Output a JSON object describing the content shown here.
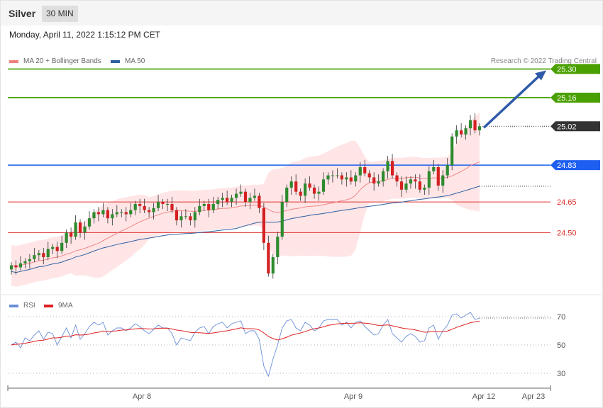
{
  "header": {
    "instrument": "Silver",
    "timeframe": "30 MIN"
  },
  "timestamp": "Monday, April 11, 2022 1:15:12 PM CET",
  "credit": "Research © 2022 Trading Central",
  "legend": {
    "main": [
      {
        "label": "MA 20 + Bollinger Bands",
        "color": "#f08080"
      },
      {
        "label": "MA 50",
        "color": "#2f5fa0"
      }
    ],
    "rsi": [
      {
        "label": "RSI",
        "color": "#6a8fd8"
      },
      {
        "label": "9MA",
        "color": "#e02020"
      }
    ]
  },
  "chart_data": [
    {
      "type": "candlestick",
      "title": "Silver 30 MIN",
      "ylim": [
        24.2,
        25.35
      ],
      "x_ticks": [
        "Apr 8",
        "Apr 9",
        "Apr 12",
        "Apr 23"
      ],
      "levels": [
        {
          "value": 25.3,
          "label": "25.30",
          "color": "#4aa000",
          "kind": "resistance"
        },
        {
          "value": 25.16,
          "label": "25.16",
          "color": "#4aa000",
          "kind": "resistance"
        },
        {
          "value": 25.02,
          "label": "25.02",
          "color": "#333333",
          "kind": "last"
        },
        {
          "value": 24.83,
          "label": "24.83",
          "color": "#1e5ef0",
          "kind": "pivot"
        },
        {
          "value": 24.65,
          "label": "24.65",
          "color": "#e03030",
          "kind": "support"
        },
        {
          "value": 24.5,
          "label": "24.50",
          "color": "#e03030",
          "kind": "support"
        }
      ],
      "colors": {
        "up": "#2e8b2e",
        "down": "#d42020",
        "band": "#ffe0e2",
        "ma20": "#f08080",
        "ma50": "#2f5fa0",
        "arrow": "#2e5aa8"
      },
      "close": [
        24.34,
        24.33,
        24.35,
        24.36,
        24.37,
        24.39,
        24.4,
        24.38,
        24.42,
        24.43,
        24.41,
        24.45,
        24.5,
        24.48,
        24.55,
        24.5,
        24.53,
        24.57,
        24.6,
        24.59,
        24.61,
        24.57,
        24.59,
        24.6,
        24.6,
        24.59,
        24.61,
        24.64,
        24.63,
        24.61,
        24.6,
        24.62,
        24.65,
        24.64,
        24.64,
        24.61,
        24.56,
        24.58,
        24.58,
        24.56,
        24.6,
        24.63,
        24.64,
        24.61,
        24.64,
        24.66,
        24.67,
        24.65,
        24.67,
        24.69,
        24.7,
        24.65,
        24.67,
        24.68,
        24.62,
        24.45,
        24.3,
        24.38,
        24.48,
        24.65,
        24.72,
        24.75,
        24.7,
        24.68,
        24.74,
        24.72,
        24.69,
        24.7,
        24.76,
        24.78,
        24.78,
        24.78,
        24.76,
        24.77,
        24.75,
        24.78,
        24.82,
        24.79,
        24.77,
        24.74,
        24.75,
        24.8,
        24.85,
        24.78,
        24.75,
        24.71,
        24.74,
        24.76,
        24.75,
        24.71,
        24.72,
        24.8,
        24.82,
        24.73,
        24.78,
        24.83,
        24.97,
        25.0,
        24.98,
        25.01,
        25.05,
        25.0,
        25.02
      ]
    },
    {
      "type": "line",
      "title": "RSI",
      "ylim": [
        20,
        80
      ],
      "y_ticks": [
        70,
        50,
        30
      ],
      "series": [
        {
          "name": "RSI",
          "color": "#6a8fd8",
          "values": [
            50,
            52,
            48,
            55,
            53,
            57,
            60,
            54,
            59,
            58,
            50,
            56,
            62,
            55,
            64,
            54,
            58,
            63,
            66,
            64,
            66,
            57,
            60,
            62,
            62,
            60,
            62,
            65,
            63,
            60,
            58,
            61,
            64,
            62,
            62,
            58,
            50,
            55,
            54,
            53,
            59,
            62,
            63,
            58,
            63,
            65,
            66,
            62,
            65,
            66,
            67,
            58,
            60,
            60,
            54,
            35,
            28,
            40,
            50,
            62,
            67,
            68,
            62,
            60,
            66,
            64,
            60,
            62,
            67,
            68,
            68,
            68,
            64,
            66,
            62,
            66,
            67,
            63,
            60,
            57,
            58,
            64,
            68,
            58,
            55,
            52,
            56,
            58,
            56,
            52,
            53,
            62,
            64,
            54,
            60,
            64,
            71,
            72,
            69,
            71,
            73,
            68,
            69
          ]
        },
        {
          "name": "9MA",
          "color": "#e02020",
          "values": [
            50,
            50.5,
            50.7,
            51.2,
            51.8,
            52.5,
            53.2,
            53.4,
            54.2,
            55,
            55,
            55.5,
            56.2,
            56.3,
            57.2,
            57,
            57.2,
            57.7,
            58.5,
            59,
            59.8,
            59.5,
            59.7,
            60,
            60.5,
            60.6,
            61,
            61.4,
            61.6,
            61.5,
            61.3,
            61.4,
            61.8,
            61.9,
            61.8,
            61.3,
            60.5,
            60.1,
            59.5,
            58.9,
            58.7,
            58.6,
            58.4,
            58.1,
            58.5,
            59,
            59.6,
            60,
            60.7,
            61.4,
            62.1,
            61.5,
            61.5,
            61.4,
            60.6,
            58.5,
            56,
            54.5,
            53.5,
            54.3,
            55.5,
            56.9,
            57.7,
            58.5,
            59.4,
            60.6,
            61.5,
            62,
            62.8,
            63.8,
            64.4,
            64.9,
            65.2,
            65.4,
            65.3,
            65.4,
            65.7,
            65.4,
            65.1,
            64.4,
            63.8,
            63.9,
            64.2,
            63.5,
            62.8,
            62,
            61.5,
            61.2,
            60.6,
            59.8,
            59,
            59.2,
            59.7,
            59.3,
            59.3,
            59.8,
            61.1,
            62.4,
            63.5,
            64.6,
            65.7,
            66.3,
            66.9
          ]
        }
      ]
    }
  ]
}
